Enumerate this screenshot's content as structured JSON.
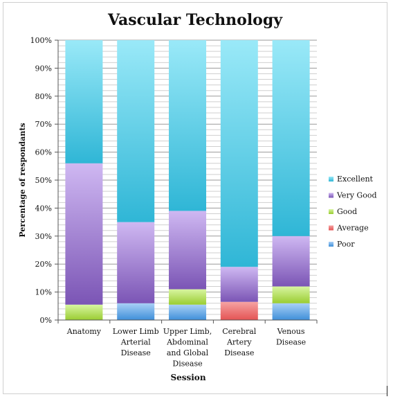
{
  "chart_data": {
    "type": "bar",
    "stacked": true,
    "percent": true,
    "title": "Vascular Technology",
    "xlabel": "Session",
    "ylabel": "Percentage of respondants",
    "ylim": [
      0,
      100
    ],
    "yticks": [
      0,
      10,
      20,
      30,
      40,
      50,
      60,
      70,
      80,
      90,
      100
    ],
    "ytick_labels": [
      "0%",
      "10%",
      "20%",
      "30%",
      "40%",
      "50%",
      "60%",
      "70%",
      "80%",
      "90%",
      "100%"
    ],
    "grid": true,
    "legend_position": "right",
    "categories": [
      [
        "Anatomy"
      ],
      [
        "Lower Limb",
        "Arterial",
        "Disease"
      ],
      [
        "Upper Limb,",
        "Abdominal",
        "and Global",
        "Disease"
      ],
      [
        "Cerebral",
        "Artery",
        "Disease"
      ],
      [
        "Venous",
        "Disease"
      ]
    ],
    "series": [
      {
        "name": "Poor",
        "color": "#3f8fd9",
        "light": "#a9d0f6",
        "values": [
          0,
          6,
          5.5,
          0,
          6
        ]
      },
      {
        "name": "Average",
        "color": "#e45353",
        "light": "#f6a3a3",
        "values": [
          0,
          0,
          0,
          6.5,
          0
        ]
      },
      {
        "name": "Good",
        "color": "#9acd32",
        "light": "#d8f5a2",
        "values": [
          5.5,
          0,
          5.5,
          0,
          6
        ]
      },
      {
        "name": "Very Good",
        "color": "#7b55b5",
        "light": "#cfb8f2",
        "values": [
          50.5,
          29,
          28,
          12.5,
          18
        ]
      },
      {
        "name": "Excellent",
        "color": "#2fb6d6",
        "light": "#9ae9f8",
        "values": [
          44,
          65,
          61,
          81,
          70
        ]
      }
    ]
  }
}
